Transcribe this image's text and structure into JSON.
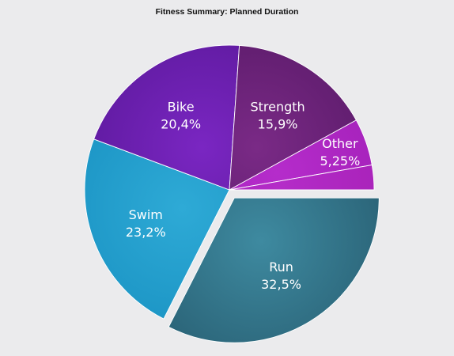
{
  "chart_data": {
    "type": "pie",
    "title": "Fitness Summary: Planned Duration",
    "exploded_slice": "Run",
    "slices": [
      {
        "label": "Run",
        "value": 32.5,
        "display": "32,5%",
        "color": "#2b6478",
        "highlight": "#3e8aa0"
      },
      {
        "label": "Swim",
        "value": 23.2,
        "display": "23,2%",
        "color": "#1b94c4",
        "highlight": "#2eaad6"
      },
      {
        "label": "Bike",
        "value": 20.4,
        "display": "20,4%",
        "color": "#5e1a9e",
        "highlight": "#7a26c2"
      },
      {
        "label": "Strength",
        "value": 15.9,
        "display": "15,9%",
        "color": "#5c1b6b",
        "highlight": "#7a2a86"
      },
      {
        "label": "Other",
        "value": 5.25,
        "display": "5,25%",
        "color": "#a320b8",
        "highlight": "#b52ccb"
      },
      {
        "label": "",
        "value": 2.75,
        "display": "",
        "color": "#a620b6",
        "highlight": "#b42cc8"
      }
    ]
  }
}
